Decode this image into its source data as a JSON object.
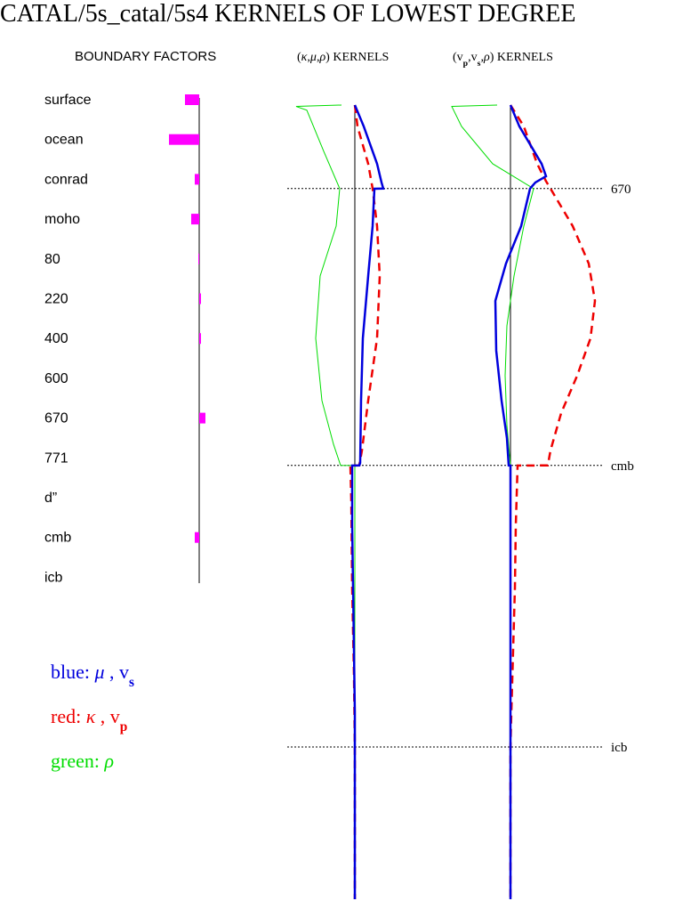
{
  "chart_data": {
    "type": "kernel-profile",
    "title": "CATAL/5s_catal/5s4 KERNELS OF LOWEST DEGREE",
    "rlim": [
      0,
      6371
    ],
    "boundary_factors": {
      "title": "BOUNDARY FACTORS",
      "color": "#ff00ff",
      "categories": [
        "surface",
        "ocean",
        "conrad",
        "moho",
        "80",
        "220",
        "400",
        "600",
        "670",
        "771",
        "d”",
        "cmb",
        "icb"
      ],
      "values": [
        -16,
        -34,
        -5,
        -9,
        -1,
        2,
        2,
        0,
        7,
        0,
        0,
        -5,
        0
      ]
    },
    "boundaries": [
      {
        "label": "670",
        "radius": 5701
      },
      {
        "label": "cmb",
        "radius": 3480
      },
      {
        "label": "icb",
        "radius": 1221
      }
    ],
    "panels": [
      {
        "title": [
          {
            "text": "("
          },
          {
            "text": "κ",
            "italic": true
          },
          {
            "text": ","
          },
          {
            "text": "μ",
            "italic": true
          },
          {
            "text": ","
          },
          {
            "text": "ρ",
            "italic": true
          },
          {
            "text": ")  KERNELS"
          }
        ],
        "series": [
          {
            "color": "#00dd00",
            "width": 1,
            "radius": [
              6371,
              6360,
              6330,
              6000,
              5701,
              5400,
              5000,
              4500,
              4000,
              3650,
              3480,
              3479,
              0
            ],
            "values": [
              -15,
              -66,
              -54,
              -35,
              -17,
              -21,
              -39,
              -44,
              -37,
              -24,
              -16,
              0,
              0
            ]
          },
          {
            "color": "#ee0000",
            "width": 2.5,
            "dash": true,
            "radius": [
              6371,
              6200,
              5900,
              5701,
              5400,
              5000,
              4500,
              4000,
              3600,
              3480,
              3479,
              3200,
              2500,
              1800,
              1221,
              0
            ],
            "values": [
              0,
              3,
              15,
              20,
              25,
              28,
              25,
              15,
              8,
              5,
              -5,
              -4,
              -3,
              -1,
              0,
              0
            ]
          },
          {
            "color": "#0000dd",
            "width": 2.5,
            "radius": [
              6371,
              6200,
              5900,
              5750,
              5701,
              5700,
              5400,
              5000,
              4500,
              4000,
              3500,
              3480,
              3479,
              3000,
              2500,
              2000,
              1500,
              1221,
              0
            ],
            "values": [
              0,
              10,
              25,
              30,
              32,
              22,
              20,
              15,
              9,
              7,
              6,
              5,
              -3,
              -3,
              -2,
              -1,
              0,
              0,
              0
            ]
          }
        ]
      },
      {
        "title": [
          {
            "text": "(v"
          },
          {
            "text": "p",
            "sub": true
          },
          {
            "text": ",v"
          },
          {
            "text": "s",
            "sub": true
          },
          {
            "text": ","
          },
          {
            "text": "ρ",
            "italic": true
          },
          {
            "text": ")  KERNELS"
          }
        ],
        "series": [
          {
            "color": "#00dd00",
            "width": 1,
            "radius": [
              6371,
              6360,
              6200,
              5900,
              5701,
              5400,
              5000,
              4600,
              4200,
              3800,
              3480,
              0
            ],
            "values": [
              -15,
              -66,
              -55,
              -20,
              26,
              15,
              4,
              -4,
              -6,
              -4,
              0,
              0
            ]
          },
          {
            "color": "#ee0000",
            "width": 2.5,
            "dash": true,
            "radius": [
              6371,
              6200,
              5900,
              5760,
              5701,
              5400,
              5100,
              4800,
              4500,
              4200,
              3900,
              3600,
              3480,
              3479,
              3000,
              2500,
              2000,
              1500,
              1221,
              0
            ],
            "values": [
              0,
              15,
              30,
              40,
              45,
              70,
              88,
              95,
              90,
              75,
              57,
              45,
              42,
              8,
              6,
              5,
              3,
              1,
              0,
              0
            ]
          },
          {
            "color": "#0000dd",
            "width": 2.5,
            "radius": [
              6371,
              6200,
              5900,
              5800,
              5750,
              5701,
              5400,
              5100,
              4800,
              4400,
              4000,
              3700,
              3480,
              3479,
              0
            ],
            "values": [
              0,
              10,
              35,
              40,
              28,
              22,
              12,
              -5,
              -17,
              -16,
              -10,
              -4,
              -2,
              0,
              0
            ]
          }
        ]
      }
    ],
    "legend": [
      {
        "color": "#0000dd",
        "parts": [
          {
            "text": "blue:   "
          },
          {
            "text": "μ",
            "italic": true
          },
          {
            "text": " , v"
          },
          {
            "text": "s",
            "sub": true
          }
        ]
      },
      {
        "color": "#ee0000",
        "parts": [
          {
            "text": "red:   "
          },
          {
            "text": "κ",
            "italic": true
          },
          {
            "text": " , v"
          },
          {
            "text": "p",
            "sub": true
          }
        ]
      },
      {
        "color": "#00dd00",
        "parts": [
          {
            "text": "green:   "
          },
          {
            "text": "ρ",
            "italic": true
          }
        ]
      }
    ]
  }
}
